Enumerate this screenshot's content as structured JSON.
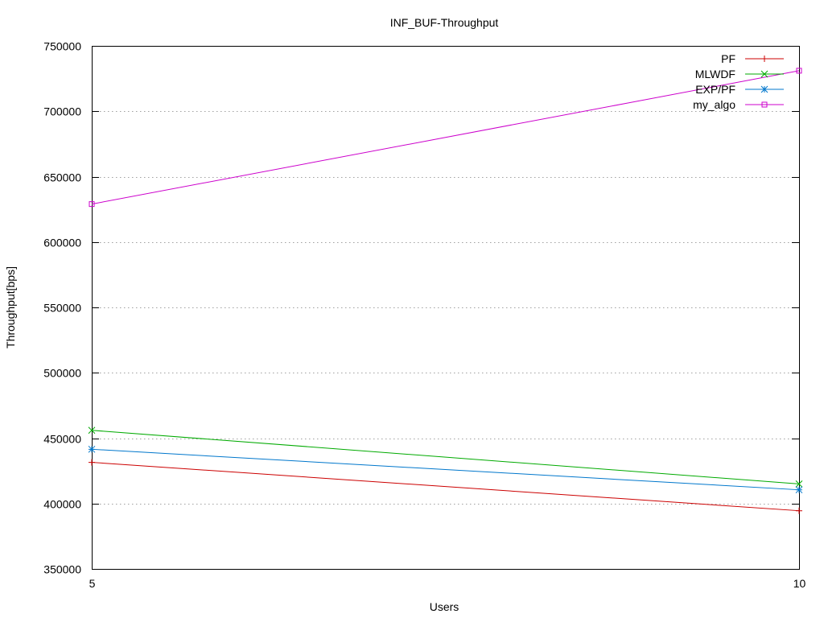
{
  "chart_data": {
    "type": "line",
    "title": "INF_BUF-Throughput",
    "xlabel": "Users",
    "ylabel": "Throughput[bps]",
    "x": [
      5,
      10
    ],
    "xlim": [
      5,
      10
    ],
    "ylim": [
      350000,
      750000
    ],
    "xticks": [
      5,
      10
    ],
    "xtick_labels": [
      "5",
      "10"
    ],
    "yticks": [
      350000,
      400000,
      450000,
      500000,
      550000,
      600000,
      650000,
      700000,
      750000
    ],
    "ytick_labels": [
      "350000",
      "400000",
      "450000",
      "500000",
      "550000",
      "600000",
      "650000",
      "700000",
      "750000"
    ],
    "grid": true,
    "legend_position": "top-right",
    "series": [
      {
        "name": "PF",
        "values": [
          431500,
          394500
        ],
        "color": "#cc0000",
        "marker": "plus"
      },
      {
        "name": "MLWDF",
        "values": [
          456000,
          415000
        ],
        "color": "#00aa00",
        "marker": "cross"
      },
      {
        "name": "EXP/PF",
        "values": [
          441500,
          410500
        ],
        "color": "#0077cc",
        "marker": "star"
      },
      {
        "name": "my_algo",
        "values": [
          629000,
          731000
        ],
        "color": "#cc00cc",
        "marker": "square"
      }
    ]
  }
}
